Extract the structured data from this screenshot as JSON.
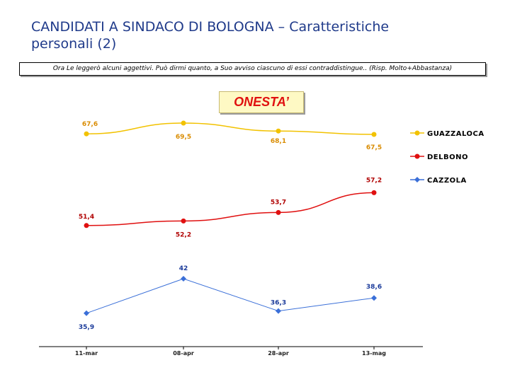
{
  "header": {
    "title_line1": "CANDIDATI A SINDACO DI BOLOGNA – Caratteristiche",
    "title_line2": "personali (2)"
  },
  "question_text": "Ora Le leggerò alcuni aggettivi. Può dirmi quanto, a Suo avviso ciascuno di essi contraddistingue.. (Risp. Molto+Abbastanza)",
  "subject_label": "ONESTA’",
  "colors": {
    "title": "#1f3a8a",
    "guazzaloca": "#f2c200",
    "delbono": "#e01010",
    "cazzola": "#3a6fd8"
  },
  "chart_data": {
    "type": "line",
    "title": "ONESTA’",
    "categories": [
      "11-mar",
      "08-apr",
      "28-apr",
      "13-mag"
    ],
    "series": [
      {
        "name": "GUAZZALOCA",
        "values": [
          67.6,
          69.5,
          68.1,
          67.5
        ],
        "labels": [
          "67,6",
          "69,5",
          "68,1",
          "67,5"
        ],
        "color": "#f2c200",
        "marker": "circle"
      },
      {
        "name": "DELBONO",
        "values": [
          51.4,
          52.2,
          53.7,
          57.2
        ],
        "labels": [
          "51,4",
          "52,2",
          "53,7",
          "57,2"
        ],
        "color": "#e01010",
        "marker": "circle"
      },
      {
        "name": "CAZZOLA",
        "values": [
          35.9,
          42,
          36.3,
          38.6
        ],
        "labels": [
          "35,9",
          "42",
          "36,3",
          "38,6"
        ],
        "color": "#3a6fd8",
        "marker": "diamond"
      }
    ],
    "ylim": [
      30,
      75
    ],
    "grid": false,
    "legend_position": "right"
  }
}
